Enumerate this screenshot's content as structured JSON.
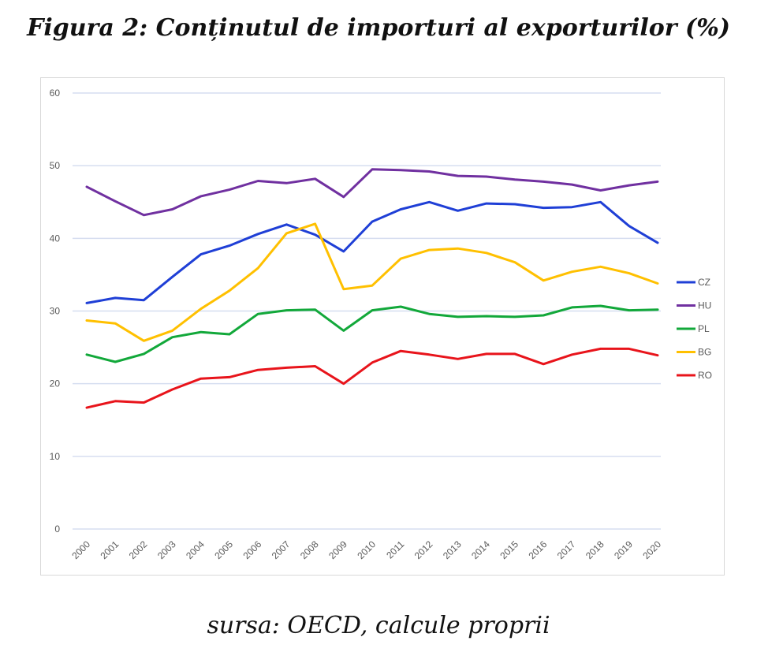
{
  "figure": {
    "title": "Figura 2: Conținutul de importuri al exporturilor (%)",
    "caption": "sursa: OECD, calcule proprii"
  },
  "chart_data": {
    "type": "line",
    "title": "Figura 2: Conținutul de importuri al exporturilor (%)",
    "xlabel": "",
    "ylabel": "",
    "ylim": [
      0,
      60
    ],
    "yticks": [
      "0",
      "10",
      "20",
      "30",
      "40",
      "50",
      "60"
    ],
    "grid": true,
    "legend_position": "right",
    "x": [
      "2000",
      "2001",
      "2002",
      "2003",
      "2004",
      "2005",
      "2006",
      "2007",
      "2008",
      "2009",
      "2010",
      "2011",
      "2012",
      "2013",
      "2014",
      "2015",
      "2016",
      "2017",
      "2018",
      "2019",
      "2020"
    ],
    "series": [
      {
        "name": "CZ",
        "color": "#1f3fd6",
        "values": [
          31.1,
          31.8,
          31.5,
          34.7,
          37.8,
          39.0,
          40.6,
          41.9,
          40.5,
          38.2,
          42.3,
          44.0,
          45.0,
          43.8,
          44.8,
          44.7,
          44.2,
          44.3,
          45.0,
          41.7,
          39.4
        ]
      },
      {
        "name": "HU",
        "color": "#7030a0",
        "values": [
          47.1,
          45.1,
          43.2,
          44.0,
          45.8,
          46.7,
          47.9,
          47.6,
          48.2,
          45.7,
          49.5,
          49.4,
          49.2,
          48.6,
          48.5,
          48.1,
          47.8,
          47.4,
          46.6,
          47.3,
          47.8
        ]
      },
      {
        "name": "PL",
        "color": "#12a83a",
        "values": [
          24.0,
          23.0,
          24.1,
          26.4,
          27.1,
          26.8,
          29.6,
          30.1,
          30.2,
          27.3,
          30.1,
          30.6,
          29.6,
          29.2,
          29.3,
          29.2,
          29.4,
          30.5,
          30.7,
          30.1,
          30.2
        ]
      },
      {
        "name": "BG",
        "color": "#ffc000",
        "values": [
          28.7,
          28.3,
          25.9,
          27.3,
          30.3,
          32.8,
          35.9,
          40.7,
          42.0,
          33.0,
          33.5,
          37.2,
          38.4,
          38.6,
          38.0,
          36.7,
          34.2,
          35.4,
          36.1,
          35.2,
          33.8
        ]
      },
      {
        "name": "RO",
        "color": "#e8141b",
        "values": [
          16.7,
          17.6,
          17.4,
          19.2,
          20.7,
          20.9,
          21.9,
          22.2,
          22.4,
          20.0,
          22.9,
          24.5,
          24.0,
          23.4,
          24.1,
          24.1,
          22.7,
          24.0,
          24.8,
          24.8,
          23.9
        ]
      }
    ]
  }
}
